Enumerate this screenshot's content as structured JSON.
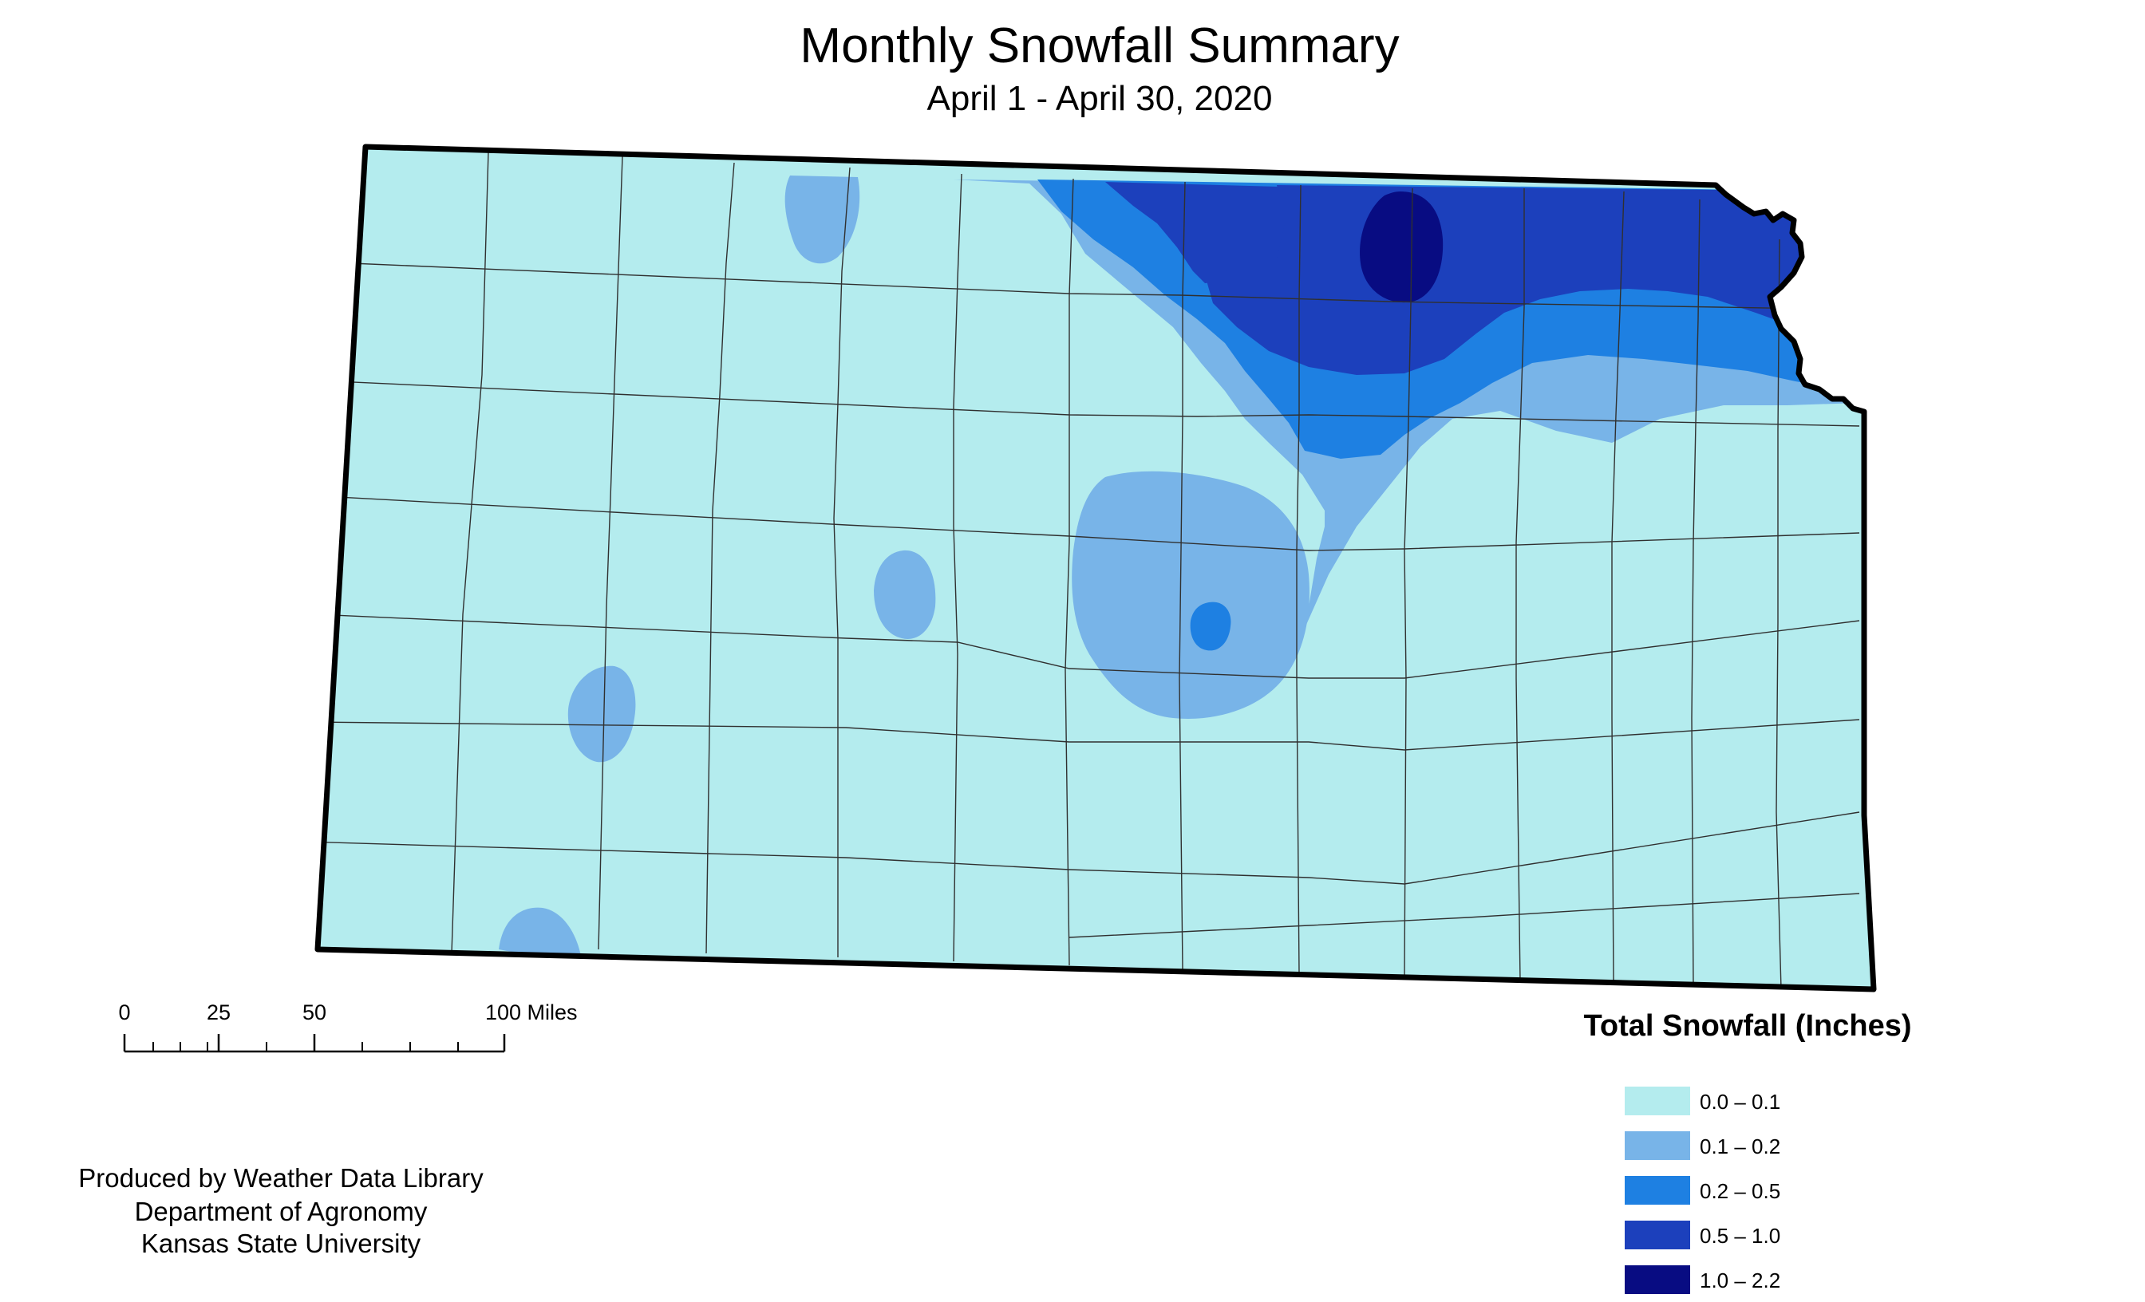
{
  "title": "Monthly Snowfall Summary",
  "subtitle": "April 1 - April 30, 2020",
  "legend": {
    "title": "Total Snowfall (Inches)",
    "classes": [
      {
        "label": "0.0 – 0.1",
        "color": "#b4ecee"
      },
      {
        "label": "0.1 – 0.2",
        "color": "#78b4e8"
      },
      {
        "label": "0.2 – 0.5",
        "color": "#1e80e2"
      },
      {
        "label": "0.5 – 1.0",
        "color": "#1c40bc"
      },
      {
        "label": "1.0 – 2.2",
        "color": "#080c82"
      }
    ]
  },
  "scale_bar": {
    "ticks": [
      "0",
      "25",
      "50",
      "100 Miles"
    ]
  },
  "credits": [
    "Produced by Weather Data Library",
    "Department of Agronomy",
    "Kansas State University"
  ],
  "colors": {
    "background": "#ffffff",
    "county_line": "#303030",
    "state_outline": "#000000"
  }
}
